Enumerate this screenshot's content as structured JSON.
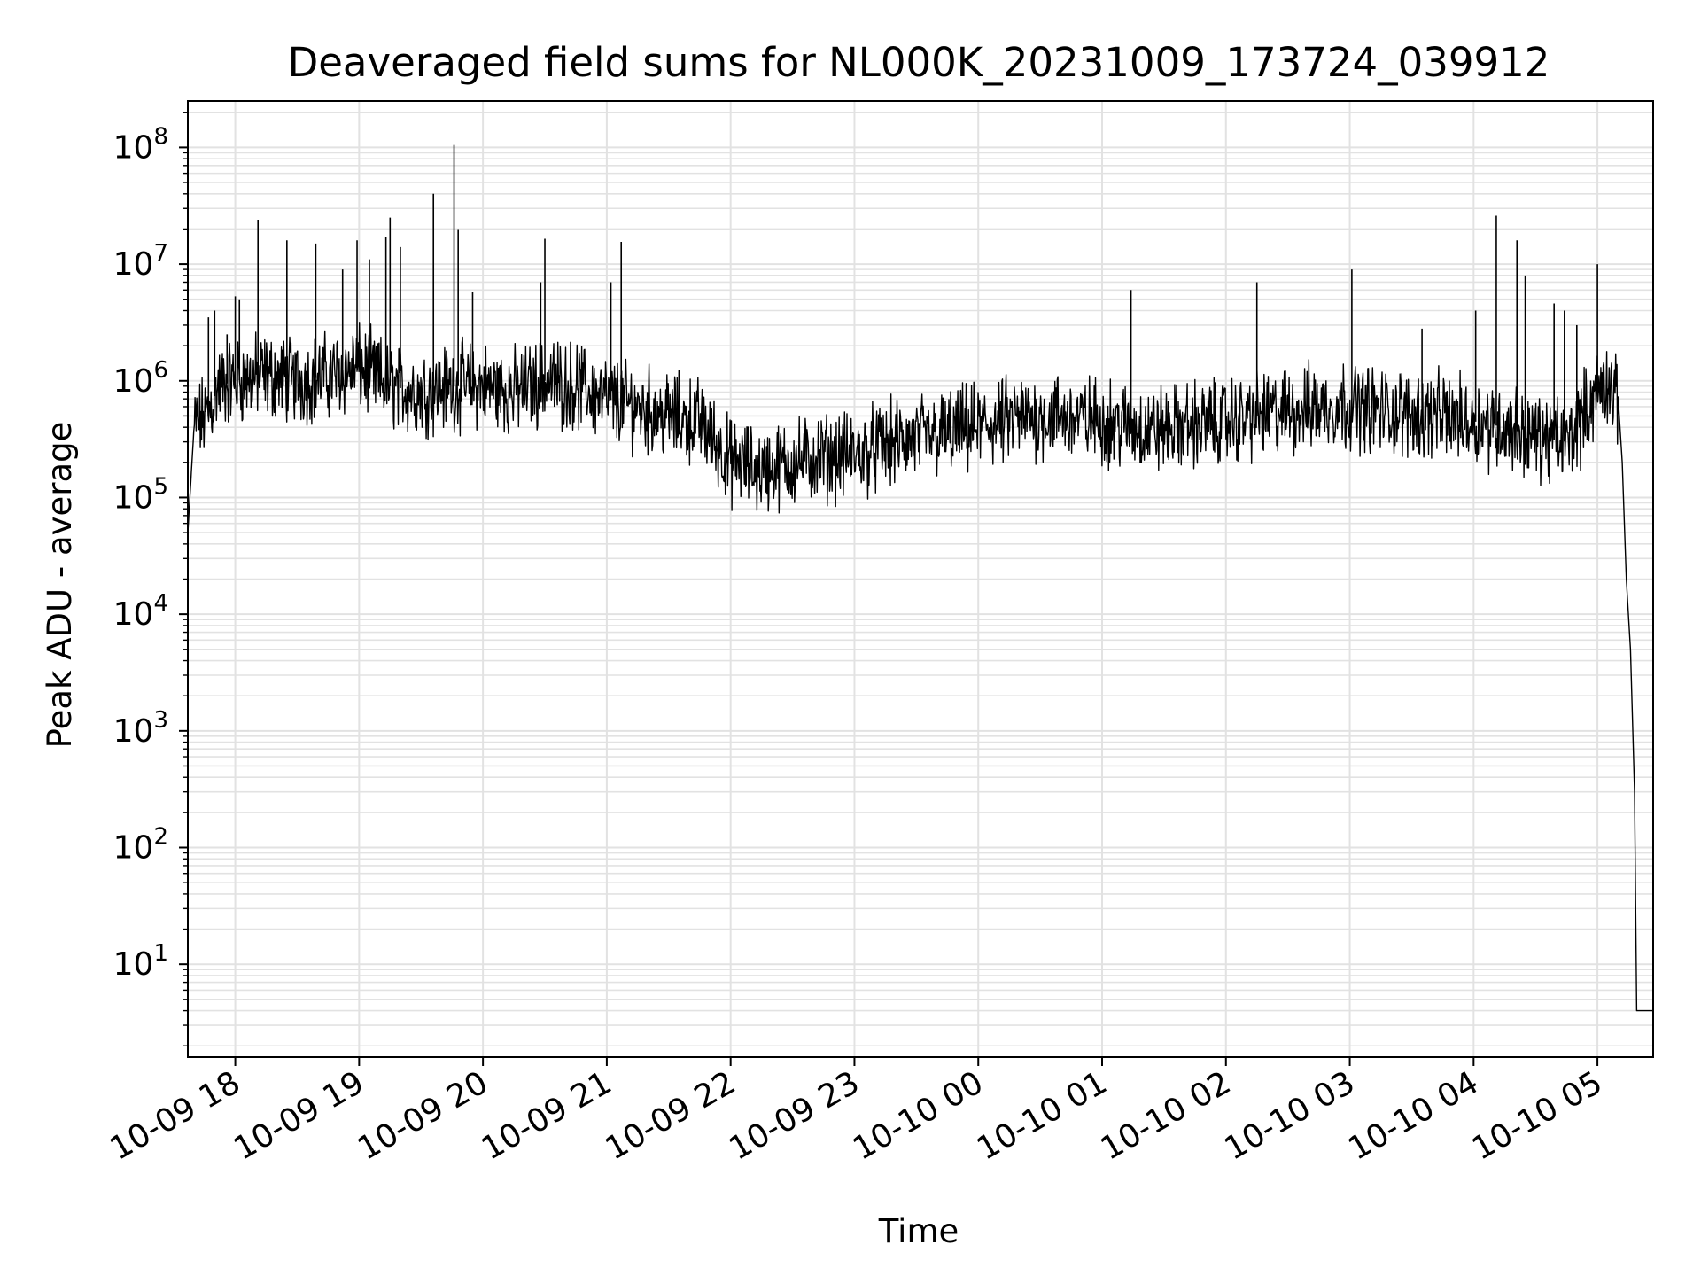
{
  "chart_data": {
    "type": "line",
    "title": "Deaveraged field sums for NL000K_20231009_173724_039912",
    "xlabel": "Time",
    "ylabel": "Peak ADU - average",
    "yscale": "log",
    "ylim": [
      1.6,
      250000000.0
    ],
    "xlim": [
      "10-09 17:37",
      "10-10 05:27"
    ],
    "grid": true,
    "legend": "none",
    "line_color": "#000000",
    "x_tick_labels": [
      "10-09 18",
      "10-09 19",
      "10-09 20",
      "10-09 21",
      "10-09 22",
      "10-09 23",
      "10-10 00",
      "10-10 01",
      "10-10 02",
      "10-10 03",
      "10-10 04",
      "10-10 05"
    ],
    "y_tick_labels": [
      {
        "base": "10",
        "exp": "1"
      },
      {
        "base": "10",
        "exp": "2"
      },
      {
        "base": "10",
        "exp": "3"
      },
      {
        "base": "10",
        "exp": "4"
      },
      {
        "base": "10",
        "exp": "5"
      },
      {
        "base": "10",
        "exp": "6"
      },
      {
        "base": "10",
        "exp": "7"
      },
      {
        "base": "10",
        "exp": "8"
      }
    ],
    "series": [
      {
        "x": [
          "10-09 17:37",
          "10-09 17:40",
          "10-09 17:46",
          "10-09 17:52",
          "10-09 18:00",
          "10-09 18:15",
          "10-09 18:30",
          "10-09 18:45",
          "10-09 19:00",
          "10-09 19:15",
          "10-09 19:30",
          "10-09 19:45",
          "10-09 20:00",
          "10-09 20:15",
          "10-09 20:30",
          "10-09 20:45",
          "10-09 21:00",
          "10-09 21:15",
          "10-09 21:30",
          "10-09 21:45",
          "10-09 22:00",
          "10-09 22:15",
          "10-09 22:30",
          "10-09 22:45",
          "10-09 23:00",
          "10-09 23:15",
          "10-09 23:30",
          "10-09 23:45",
          "10-10 00:00",
          "10-10 00:15",
          "10-10 00:30",
          "10-10 00:45",
          "10-10 01:00",
          "10-10 01:15",
          "10-10 01:30",
          "10-10 01:45",
          "10-10 02:00",
          "10-10 02:15",
          "10-10 02:30",
          "10-10 02:45",
          "10-10 03:00",
          "10-10 03:15",
          "10-10 03:30",
          "10-10 03:45",
          "10-10 04:00",
          "10-10 04:15",
          "10-10 04:30",
          "10-10 04:45",
          "10-10 05:00",
          "10-10 05:05",
          "10-10 05:10",
          "10-10 05:12",
          "10-10 05:14",
          "10-10 05:16",
          "10-10 05:18",
          "10-10 05:19",
          "10-10 05:20",
          "10-10 05:27"
        ],
        "y": [
          50000,
          400000,
          500000,
          900000,
          1000000,
          1100000,
          1000000,
          1100000,
          1300000,
          900000,
          800000,
          900000,
          900000,
          800000,
          1000000,
          900000,
          700000,
          600000,
          500000,
          450000,
          200000,
          170000,
          200000,
          220000,
          230000,
          280000,
          320000,
          350000,
          400000,
          450000,
          500000,
          480000,
          450000,
          400000,
          380000,
          420000,
          450000,
          500000,
          550000,
          600000,
          620000,
          550000,
          520000,
          500000,
          450000,
          400000,
          330000,
          300000,
          800000,
          1000000,
          600000,
          200000,
          20000,
          5000,
          300,
          4,
          4,
          4
        ]
      }
    ],
    "spikes": [
      {
        "x": "10-09 17:47",
        "y": 3500000
      },
      {
        "x": "10-09 17:50",
        "y": 4000000
      },
      {
        "x": "10-09 17:56",
        "y": 2500000
      },
      {
        "x": "10-09 18:00",
        "y": 5300000
      },
      {
        "x": "10-09 18:02",
        "y": 5000000
      },
      {
        "x": "10-09 18:11",
        "y": 24000000
      },
      {
        "x": "10-09 18:25",
        "y": 16000000
      },
      {
        "x": "10-09 18:39",
        "y": 15000000
      },
      {
        "x": "10-09 18:52",
        "y": 9000000
      },
      {
        "x": "10-09 18:59",
        "y": 16000000
      },
      {
        "x": "10-09 19:05",
        "y": 11000000
      },
      {
        "x": "10-09 19:13",
        "y": 17000000
      },
      {
        "x": "10-09 19:15",
        "y": 25000000
      },
      {
        "x": "10-09 19:20",
        "y": 14000000
      },
      {
        "x": "10-09 19:36",
        "y": 40000000
      },
      {
        "x": "10-09 19:46",
        "y": 105000000
      },
      {
        "x": "10-09 19:48",
        "y": 20000000
      },
      {
        "x": "10-09 19:55",
        "y": 5800000
      },
      {
        "x": "10-09 20:28",
        "y": 7000000
      },
      {
        "x": "10-09 20:30",
        "y": 16500000
      },
      {
        "x": "10-09 21:02",
        "y": 7000000
      },
      {
        "x": "10-09 21:07",
        "y": 15500000
      },
      {
        "x": "10-10 01:14",
        "y": 6000000
      },
      {
        "x": "10-10 02:15",
        "y": 7000000
      },
      {
        "x": "10-10 03:01",
        "y": 9000000
      },
      {
        "x": "10-10 03:35",
        "y": 2800000
      },
      {
        "x": "10-10 04:01",
        "y": 4000000
      },
      {
        "x": "10-10 04:11",
        "y": 26000000
      },
      {
        "x": "10-10 04:21",
        "y": 16000000
      },
      {
        "x": "10-10 04:25",
        "y": 8000000
      },
      {
        "x": "10-10 04:39",
        "y": 4600000
      },
      {
        "x": "10-10 04:44",
        "y": 4000000
      },
      {
        "x": "10-10 04:50",
        "y": 3000000
      },
      {
        "x": "10-10 05:00",
        "y": 10000000
      }
    ]
  }
}
